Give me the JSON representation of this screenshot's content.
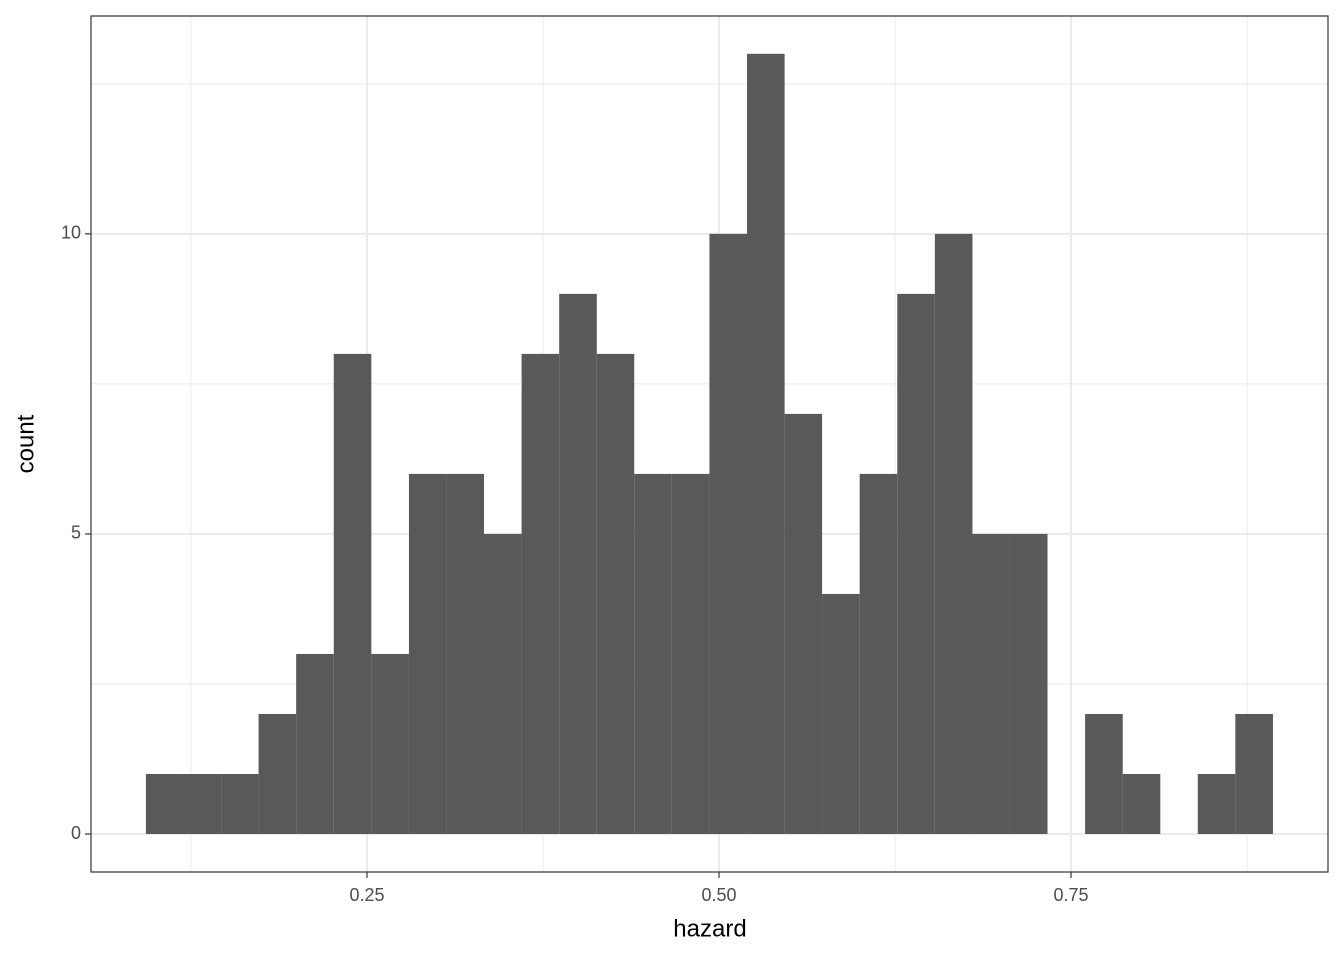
{
  "chart_data": {
    "type": "histogram",
    "x_label": "hazard",
    "y_label": "count",
    "bins": [
      0.093,
      0.1197,
      0.1464,
      0.173,
      0.1997,
      0.2264,
      0.2531,
      0.2798,
      0.3064,
      0.3331,
      0.3598,
      0.3865,
      0.4132,
      0.4398,
      0.4665,
      0.4932,
      0.5199,
      0.5466,
      0.5732,
      0.5999,
      0.6266,
      0.6533,
      0.68,
      0.7066,
      0.7333,
      0.76,
      0.7867,
      0.8134,
      0.84,
      0.8667,
      0.8934
    ],
    "values": [
      1,
      1,
      1,
      2,
      3,
      8,
      3,
      6,
      6,
      5,
      8,
      9,
      8,
      6,
      6,
      10,
      13,
      7,
      4,
      6,
      9,
      10,
      5,
      5,
      0,
      2,
      1,
      0,
      1,
      2
    ],
    "color": "#595959",
    "xlim": [
      0.054,
      0.9325
    ],
    "ylim": [
      -0.633,
      13.63
    ],
    "xticks": [
      0.25,
      {
        "value": 0.5,
        "label": "0.50"
      },
      0.75
    ],
    "yticks": [
      0,
      5,
      10
    ],
    "x_minor_grid": [
      0.125,
      0.375,
      0.625,
      0.875
    ],
    "y_minor_grid": [
      2.5,
      7.5,
      12.5
    ],
    "grid": true
  }
}
